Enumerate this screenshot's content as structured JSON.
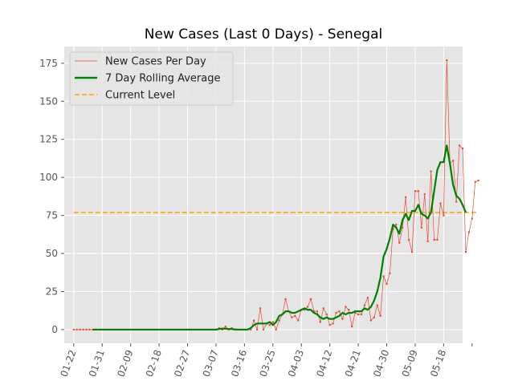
{
  "chart_data": {
    "type": "line",
    "title": "New Cases (Last 0 Days) - Senegal",
    "xlabel": "",
    "ylabel": "",
    "x_start": "2020-01-22",
    "x_end": "2020-05-20",
    "xlim": [
      "2020-01-19",
      "2020-05-24"
    ],
    "ylim": [
      -9,
      186
    ],
    "x_ticks": [
      {
        "date": "2020-01-22",
        "label": "01-22"
      },
      {
        "date": "2020-01-31",
        "label": "01-31"
      },
      {
        "date": "2020-02-09",
        "label": "02-09"
      },
      {
        "date": "2020-02-18",
        "label": "02-18"
      },
      {
        "date": "2020-02-27",
        "label": "02-27"
      },
      {
        "date": "2020-03-07",
        "label": "03-07"
      },
      {
        "date": "2020-03-16",
        "label": "03-16"
      },
      {
        "date": "2020-03-25",
        "label": "03-25"
      },
      {
        "date": "2020-04-03",
        "label": "04-03"
      },
      {
        "date": "2020-04-12",
        "label": "04-12"
      },
      {
        "date": "2020-04-21",
        "label": "04-21"
      },
      {
        "date": "2020-04-30",
        "label": "04-30"
      },
      {
        "date": "2020-05-09",
        "label": "05-09"
      },
      {
        "date": "2020-05-18",
        "label": "05-18"
      }
    ],
    "y_ticks": [
      0,
      25,
      50,
      75,
      100,
      125,
      150,
      175
    ],
    "grid": true,
    "legend_position": "top-left",
    "series": [
      {
        "name": "New Cases Per Day",
        "color": "#e24a33",
        "style": "thin line with small dot markers",
        "values": [
          0,
          0,
          0,
          0,
          0,
          0,
          0,
          0,
          0,
          0,
          0,
          0,
          0,
          0,
          0,
          0,
          0,
          0,
          0,
          0,
          0,
          0,
          0,
          0,
          0,
          0,
          0,
          0,
          0,
          0,
          0,
          0,
          0,
          0,
          0,
          0,
          0,
          0,
          0,
          0,
          0,
          0,
          0,
          0,
          0,
          0,
          1,
          0,
          2,
          0,
          1,
          0,
          0,
          0,
          0,
          0,
          0,
          6,
          0,
          14,
          0,
          4,
          3,
          5,
          0,
          6,
          10,
          20,
          12,
          8,
          9,
          6,
          13,
          13,
          15,
          20,
          12,
          12,
          5,
          14,
          10,
          3,
          4,
          11,
          12,
          7,
          15,
          13,
          2,
          11,
          10,
          10,
          16,
          21,
          6,
          8,
          16,
          9,
          35,
          30,
          37,
          66,
          69,
          57,
          67,
          87,
          59,
          51,
          91,
          91,
          67,
          89,
          58,
          104,
          59,
          59,
          83,
          75,
          177,
          109,
          111,
          84,
          121,
          119,
          51,
          64,
          73,
          97,
          98
        ]
      },
      {
        "name": "7 Day Rolling Average",
        "color": "#008000",
        "style": "thick line",
        "start_index": 6,
        "values": [
          0,
          0,
          0,
          0,
          0,
          0,
          0,
          0,
          0,
          0,
          0,
          0,
          0,
          0,
          0,
          0,
          0,
          0,
          0,
          0,
          0,
          0,
          0,
          0,
          0,
          0,
          0,
          0,
          0,
          0,
          0,
          0,
          0,
          0,
          0,
          0,
          0,
          0,
          0,
          0,
          0.4,
          0.6,
          0.6,
          0.4,
          0.4,
          0.1,
          0,
          0,
          0,
          0,
          1,
          3,
          4,
          4,
          4,
          4,
          5,
          3,
          5,
          9,
          10,
          12,
          12,
          11,
          11,
          12,
          13,
          14,
          13,
          13,
          11,
          10,
          8,
          7,
          8,
          7,
          7,
          8,
          9,
          11,
          10,
          11,
          11,
          12,
          12,
          12,
          14,
          13,
          15,
          19,
          25,
          34,
          48,
          53,
          60,
          69,
          67,
          63,
          72,
          76,
          72,
          78,
          78,
          82,
          76,
          75,
          73,
          77,
          91,
          105,
          110,
          110,
          121,
          109,
          95,
          88,
          86,
          82,
          77
        ]
      },
      {
        "name": "Current Level",
        "color": "#ffa500",
        "style": "dashed line",
        "value": 77
      }
    ]
  }
}
